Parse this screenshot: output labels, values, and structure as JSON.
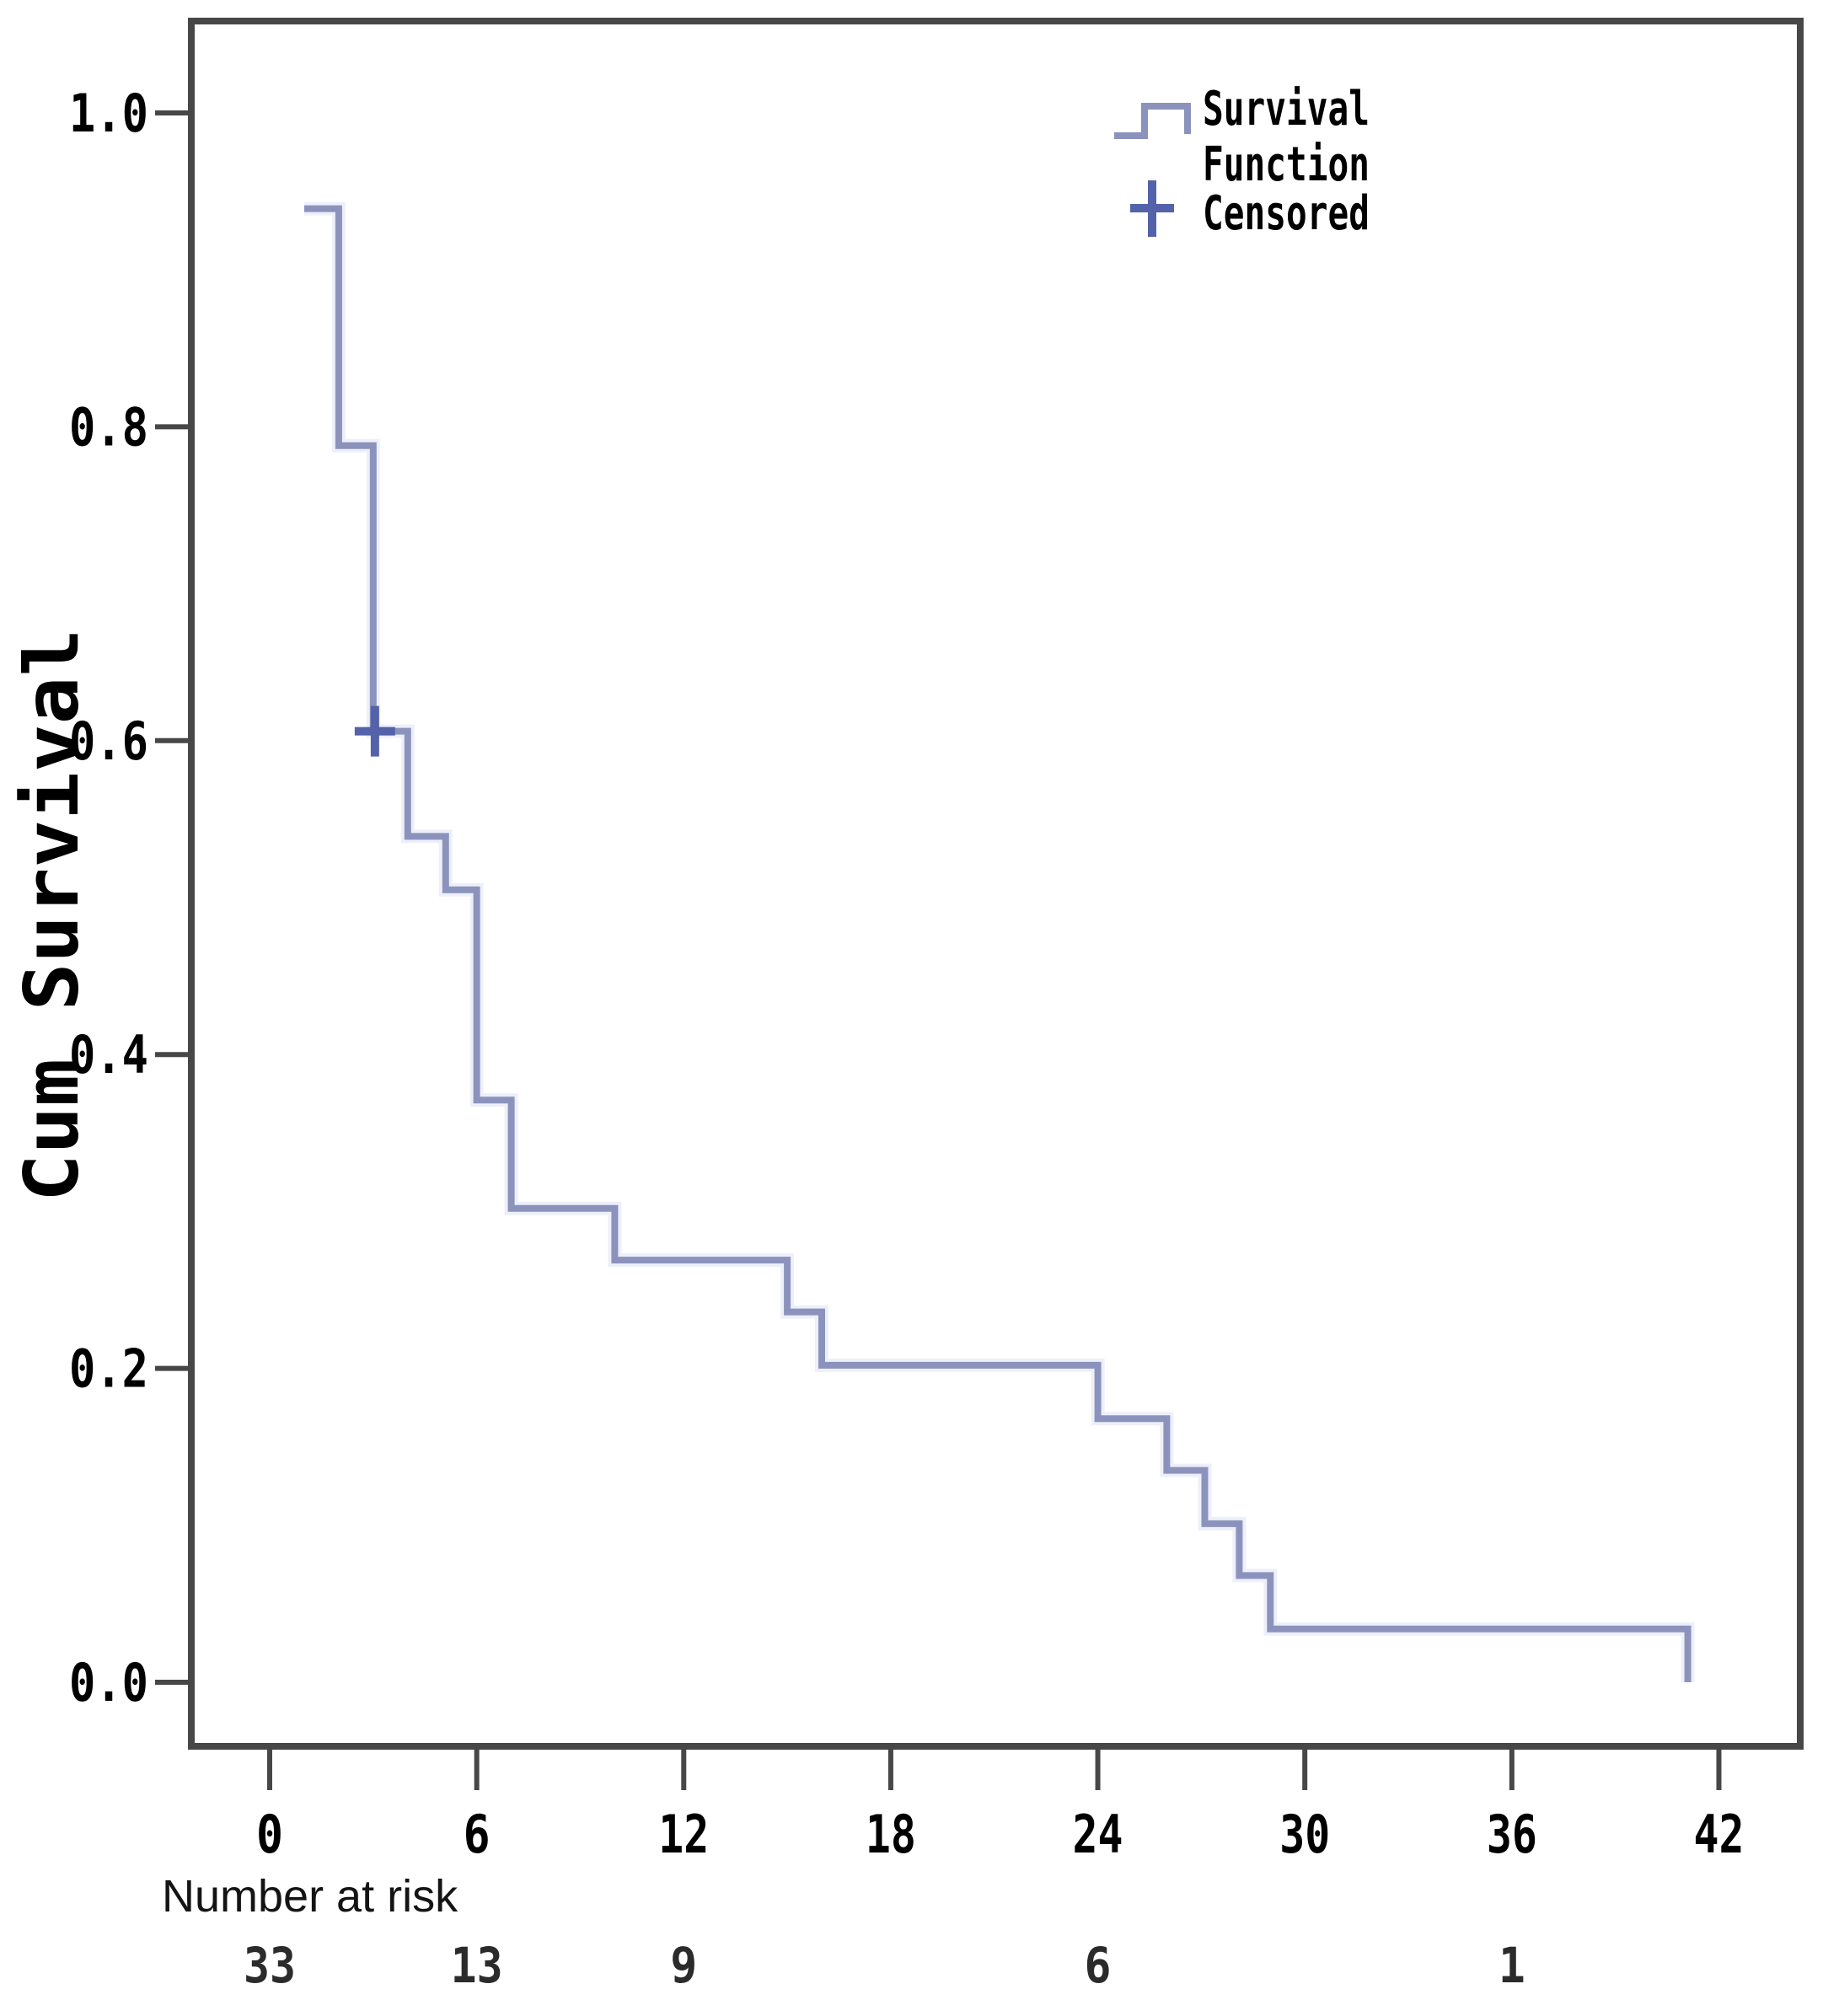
{
  "figure": {
    "ylabel": "Cum Survival",
    "legend": {
      "line1": "Survival",
      "line2": "Function",
      "censored": "Censored"
    },
    "number_at_risk_label": "Number at risk"
  },
  "colors": {
    "curve": "#8b93bd",
    "censor_cross": "#5462a9",
    "axis_frame": "#474747",
    "tick_text": "#000000",
    "risk_text": "#2b2b2b",
    "background": "#ffffff"
  },
  "chart_data": {
    "type": "line",
    "subtype": "kaplan-meier-step",
    "title": "",
    "xlabel": "",
    "ylabel": "Cum Survival",
    "xlim": [
      -2.3,
      44.4
    ],
    "ylim": [
      -0.041,
      1.059
    ],
    "xticks": [
      0,
      6,
      12,
      18,
      24,
      30,
      36,
      42
    ],
    "yticks": [
      1.0,
      0.8,
      0.6,
      0.4,
      0.2,
      0.0
    ],
    "grid": false,
    "legend_position": "top-right",
    "legend_entries": [
      "Survival Function",
      "Censored"
    ],
    "series": [
      {
        "name": "Survival Function",
        "step_points": [
          [
            1.0,
            0.939
          ],
          [
            2.0,
            0.939
          ],
          [
            2.0,
            0.788
          ],
          [
            3.0,
            0.788
          ],
          [
            3.0,
            0.606
          ],
          [
            4.0,
            0.606
          ],
          [
            4.0,
            0.539
          ],
          [
            5.1,
            0.539
          ],
          [
            5.1,
            0.505
          ],
          [
            6.0,
            0.505
          ],
          [
            6.0,
            0.371
          ],
          [
            7.0,
            0.371
          ],
          [
            7.0,
            0.302
          ],
          [
            10.0,
            0.302
          ],
          [
            10.0,
            0.269
          ],
          [
            15.0,
            0.269
          ],
          [
            15.0,
            0.236
          ],
          [
            16.0,
            0.236
          ],
          [
            16.0,
            0.202
          ],
          [
            24.0,
            0.202
          ],
          [
            24.0,
            0.168
          ],
          [
            26.0,
            0.168
          ],
          [
            26.0,
            0.135
          ],
          [
            27.1,
            0.135
          ],
          [
            27.1,
            0.101
          ],
          [
            28.1,
            0.101
          ],
          [
            28.1,
            0.068
          ],
          [
            29.0,
            0.068
          ],
          [
            29.0,
            0.034
          ],
          [
            41.1,
            0.034
          ],
          [
            41.1,
            0.0
          ]
        ]
      }
    ],
    "censored_points": [
      [
        3.05,
        0.606
      ]
    ],
    "number_at_risk": {
      "label": "Number at risk",
      "times": [
        0,
        6,
        12,
        24,
        36
      ],
      "counts": [
        33,
        13,
        9,
        6,
        1
      ]
    }
  }
}
